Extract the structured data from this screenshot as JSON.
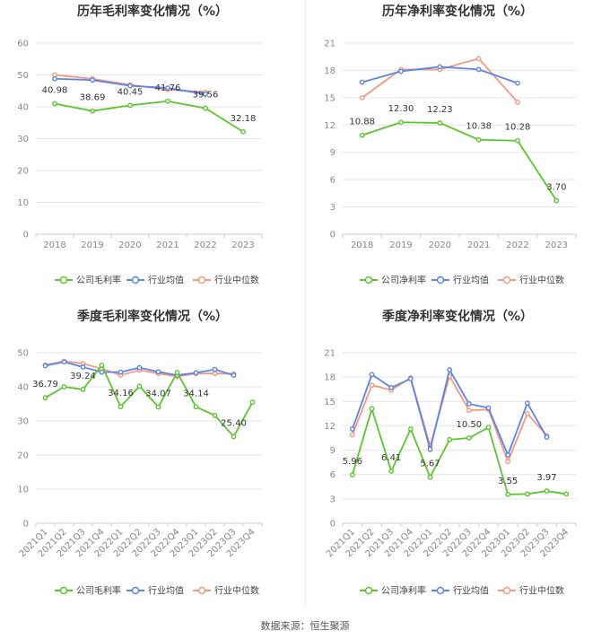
{
  "colors": {
    "company": "#5cc42f",
    "industry_avg": "#5b84e6",
    "industry_median": "#f39a7e",
    "grid": "#e6e6e6",
    "axis_text": "#888888"
  },
  "footer": "数据来源：恒生聚源",
  "chart_data": [
    {
      "type": "line",
      "title": "历年毛利率变化情况（%）",
      "categories": [
        "2018",
        "2019",
        "2020",
        "2021",
        "2022",
        "2023"
      ],
      "ylim": [
        0,
        60
      ],
      "yticks": [
        0,
        10,
        20,
        30,
        40,
        50,
        60
      ],
      "grid": true,
      "legend_position": "bottom",
      "series": [
        {
          "name": "公司毛利率",
          "values": [
            40.98,
            38.69,
            40.45,
            41.76,
            39.56,
            32.18
          ]
        },
        {
          "name": "行业均值",
          "values": [
            48.8,
            48.4,
            46.6,
            45.9,
            44.0,
            null
          ]
        },
        {
          "name": "行业中位数",
          "values": [
            50.0,
            48.8,
            46.9,
            45.4,
            44.6,
            null
          ]
        }
      ],
      "labels": [
        {
          "i": 0,
          "text": "40.98"
        },
        {
          "i": 1,
          "text": "38.69"
        },
        {
          "i": 2,
          "text": "40.45"
        },
        {
          "i": 3,
          "text": "41.76"
        },
        {
          "i": 4,
          "text": "39.56"
        },
        {
          "i": 5,
          "text": "32.18"
        }
      ]
    },
    {
      "type": "line",
      "title": "历年净利率变化情况（%）",
      "categories": [
        "2018",
        "2019",
        "2020",
        "2021",
        "2022",
        "2023"
      ],
      "ylim": [
        0,
        21
      ],
      "yticks": [
        0,
        3,
        6,
        9,
        12,
        15,
        18,
        21
      ],
      "grid": true,
      "legend_position": "bottom",
      "series": [
        {
          "name": "公司净利率",
          "values": [
            10.88,
            12.3,
            12.23,
            10.38,
            10.28,
            3.7
          ]
        },
        {
          "name": "行业均值",
          "values": [
            16.7,
            17.9,
            18.4,
            18.1,
            16.6,
            null
          ]
        },
        {
          "name": "行业中位数",
          "values": [
            15.0,
            18.1,
            18.1,
            19.3,
            14.5,
            null
          ]
        }
      ],
      "labels": [
        {
          "i": 0,
          "text": "10.88"
        },
        {
          "i": 1,
          "text": "12.30"
        },
        {
          "i": 2,
          "text": "12.23"
        },
        {
          "i": 3,
          "text": "10.38"
        },
        {
          "i": 4,
          "text": "10.28"
        },
        {
          "i": 5,
          "text": "3.70"
        }
      ]
    },
    {
      "type": "line",
      "title": "季度毛利率变化情况（%）",
      "categories": [
        "2021Q1",
        "2021Q2",
        "2021Q3",
        "2021Q4",
        "2022Q1",
        "2022Q2",
        "2022Q3",
        "2022Q4",
        "2023Q1",
        "2023Q2",
        "2023Q3",
        "2023Q4"
      ],
      "ylim": [
        0,
        50
      ],
      "yticks": [
        0,
        10,
        20,
        30,
        40,
        50
      ],
      "grid": true,
      "legend_position": "bottom",
      "rotated_xticks": true,
      "series": [
        {
          "name": "公司毛利率",
          "values": [
            36.79,
            40.0,
            39.24,
            46.3,
            34.16,
            40.2,
            34.07,
            44.2,
            34.14,
            31.6,
            25.4,
            35.5
          ]
        },
        {
          "name": "行业均值",
          "values": [
            46.2,
            47.3,
            45.8,
            44.3,
            44.3,
            45.6,
            44.4,
            43.4,
            44.1,
            45.1,
            43.4,
            null
          ]
        },
        {
          "name": "行业中位数",
          "values": [
            46.4,
            47.5,
            46.8,
            45.3,
            43.4,
            44.9,
            43.9,
            43.0,
            43.9,
            43.9,
            43.8,
            null
          ]
        }
      ],
      "labels": [
        {
          "i": 0,
          "text": "36.79"
        },
        {
          "i": 2,
          "text": "39.24"
        },
        {
          "i": 4,
          "text": "34.16"
        },
        {
          "i": 6,
          "text": "34.07"
        },
        {
          "i": 8,
          "text": "34.14"
        },
        {
          "i": 10,
          "text": "25.40"
        }
      ]
    },
    {
      "type": "line",
      "title": "季度净利率变化情况（%）",
      "categories": [
        "2021Q1",
        "2021Q2",
        "2021Q3",
        "2021Q4",
        "2022Q1",
        "2022Q2",
        "2022Q3",
        "2022Q4",
        "2023Q1",
        "2023Q2",
        "2023Q3",
        "2023Q4"
      ],
      "ylim": [
        0,
        21
      ],
      "yticks": [
        0,
        3,
        6,
        9,
        12,
        15,
        18,
        21
      ],
      "grid": true,
      "legend_position": "bottom",
      "rotated_xticks": true,
      "series": [
        {
          "name": "公司净利率",
          "values": [
            5.96,
            14.1,
            6.41,
            11.6,
            5.67,
            10.3,
            10.5,
            11.8,
            3.55,
            3.6,
            3.97,
            3.6
          ]
        },
        {
          "name": "行业均值",
          "values": [
            11.6,
            18.3,
            16.7,
            17.8,
            9.1,
            18.9,
            14.7,
            14.2,
            8.4,
            14.8,
            10.6,
            null
          ]
        },
        {
          "name": "行业中位数",
          "values": [
            10.9,
            17.0,
            16.4,
            17.9,
            9.5,
            18.1,
            13.9,
            14.0,
            7.6,
            13.5,
            10.8,
            null
          ]
        }
      ],
      "labels": [
        {
          "i": 0,
          "text": "5.96"
        },
        {
          "i": 2,
          "text": "6.41"
        },
        {
          "i": 4,
          "text": "5.67"
        },
        {
          "i": 6,
          "text": "10.50"
        },
        {
          "i": 8,
          "text": "3.55"
        },
        {
          "i": 10,
          "text": "3.97"
        }
      ]
    }
  ]
}
